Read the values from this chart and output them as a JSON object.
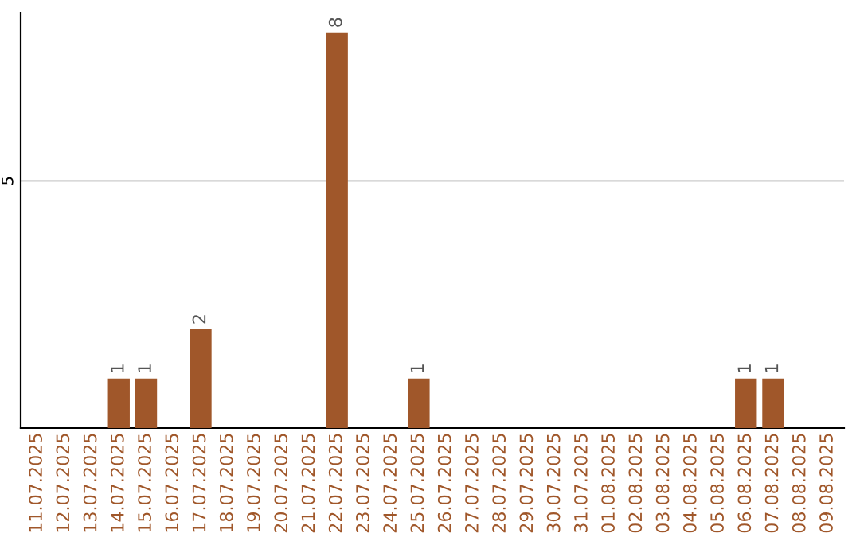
{
  "chart_data": {
    "type": "bar",
    "categories": [
      "11.07.2025",
      "12.07.2025",
      "13.07.2025",
      "14.07.2025",
      "15.07.2025",
      "16.07.2025",
      "17.07.2025",
      "18.07.2025",
      "19.07.2025",
      "20.07.2025",
      "21.07.2025",
      "22.07.2025",
      "23.07.2025",
      "24.07.2025",
      "25.07.2025",
      "26.07.2025",
      "27.07.2025",
      "28.07.2025",
      "29.07.2025",
      "30.07.2025",
      "31.07.2025",
      "01.08.2025",
      "02.08.2025",
      "03.08.2025",
      "04.08.2025",
      "05.08.2025",
      "06.08.2025",
      "07.08.2025",
      "08.08.2025",
      "09.08.2025"
    ],
    "values": [
      0,
      0,
      0,
      1,
      1,
      0,
      2,
      0,
      0,
      0,
      0,
      8,
      0,
      0,
      1,
      0,
      0,
      0,
      0,
      0,
      0,
      0,
      0,
      0,
      0,
      0,
      1,
      1,
      0,
      0
    ],
    "color": "#a0572a",
    "ylim": [
      0,
      8.4
    ],
    "yticks": [
      5
    ],
    "grid": "y",
    "value_labels": [
      null,
      null,
      null,
      "1",
      "1",
      null,
      "2",
      null,
      null,
      null,
      null,
      "8",
      null,
      null,
      "1",
      null,
      null,
      null,
      null,
      null,
      null,
      null,
      null,
      null,
      null,
      null,
      "1",
      "1",
      null,
      null
    ]
  }
}
